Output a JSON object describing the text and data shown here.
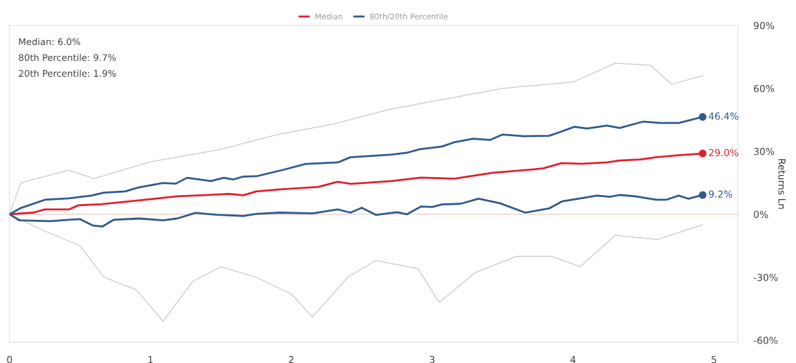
{
  "chart_data": {
    "type": "line",
    "annotations": [
      "Median: 6.0%",
      "80th Percentile: 9.7%",
      "20th Percentile: 1.9%"
    ],
    "ylabel": "Returns Ln",
    "xlim": [
      0,
      5.17
    ],
    "xticks": [
      0,
      1,
      2,
      3,
      4,
      5
    ],
    "ylim": [
      -61,
      90
    ],
    "yticks": [
      {
        "value": 90,
        "label": "90%"
      },
      {
        "value": 60,
        "label": "60%"
      },
      {
        "value": 30,
        "label": "30%"
      },
      {
        "value": 0,
        "label": "0%"
      },
      {
        "value": -30,
        "label": "-30%"
      },
      {
        "value": -60,
        "label": "-60%"
      }
    ],
    "ref_lines": [
      {
        "axis": "y",
        "value": 0,
        "color": "#f4d6d6"
      }
    ],
    "grid": false,
    "legend": "top",
    "line_style": "solid",
    "series": [
      {
        "color": "#c8c8c8",
        "x": [
          0,
          0.08,
          0.42,
          0.6,
          1.0,
          1.5,
          1.9,
          2.3,
          2.7,
          3.1,
          3.5,
          4.0,
          4.3,
          4.55,
          4.7,
          4.92
        ],
        "values": [
          0,
          15,
          21,
          17,
          25,
          31,
          38,
          43,
          50,
          55,
          60,
          63,
          72,
          71,
          62,
          66
        ]
      },
      {
        "color": "#c8c8c8",
        "x": [
          0,
          0.25,
          0.5,
          0.67,
          0.9,
          1.09,
          1.3,
          1.5,
          1.75,
          2.0,
          2.15,
          2.4,
          2.6,
          2.9,
          3.05,
          3.3,
          3.6,
          3.85,
          4.05,
          4.3,
          4.6,
          4.92
        ],
        "values": [
          0,
          -8,
          -15,
          -30,
          -36,
          -51,
          -32,
          -25,
          -30,
          -38,
          -49,
          -30,
          -22,
          -26,
          -42,
          -28,
          -20,
          -20,
          -25,
          -10,
          -12,
          -5
        ]
      },
      {
        "name": "Median",
        "color": "#e0202f",
        "x": [
          0,
          0.17,
          0.25,
          0.42,
          0.49,
          0.65,
          0.83,
          1.01,
          1.19,
          1.37,
          1.56,
          1.66,
          1.75,
          1.92,
          2.19,
          2.33,
          2.42,
          2.71,
          2.92,
          3.16,
          3.43,
          3.7,
          3.79,
          3.92,
          4.06,
          4.24,
          4.33,
          4.48,
          4.59,
          4.73,
          4.92
        ],
        "values": [
          0,
          0.8,
          2.3,
          2.3,
          4.3,
          4.8,
          6.0,
          7.3,
          8.6,
          9.1,
          9.7,
          9.1,
          10.9,
          11.9,
          13.0,
          15.5,
          14.5,
          15.8,
          17.5,
          17.0,
          19.8,
          21.3,
          21.9,
          24.4,
          24.1,
          24.7,
          25.6,
          26.1,
          27.2,
          28.0,
          29.0
        ],
        "value_labels": [
          null,
          null,
          null,
          null,
          null,
          null,
          null,
          null,
          null,
          null,
          null,
          null,
          null,
          null,
          null,
          null,
          null,
          null,
          null,
          null,
          null,
          null,
          null,
          null,
          null,
          null,
          null,
          null,
          null,
          null,
          "29.0%"
        ]
      },
      {
        "name": "80th/20th Percentile",
        "color": "#2f5b8c",
        "x": [
          0,
          0.08,
          0.25,
          0.42,
          0.58,
          0.67,
          0.82,
          0.91,
          1.09,
          1.18,
          1.26,
          1.43,
          1.52,
          1.59,
          1.66,
          1.75,
          1.95,
          2.1,
          2.33,
          2.42,
          2.71,
          2.82,
          2.91,
          3.07,
          3.16,
          3.29,
          3.41,
          3.5,
          3.66,
          3.83,
          3.9,
          4.01,
          4.1,
          4.24,
          4.33,
          4.5,
          4.62,
          4.75,
          4.92
        ],
        "values": [
          0,
          3.0,
          6.9,
          7.6,
          8.9,
          10.3,
          10.9,
          12.7,
          14.9,
          14.6,
          17.4,
          15.8,
          17.4,
          16.6,
          18.0,
          18.1,
          21.3,
          24.0,
          24.7,
          27.2,
          28.4,
          29.3,
          31.0,
          32.3,
          34.4,
          36.0,
          35.4,
          38.0,
          37.2,
          37.4,
          39.0,
          41.7,
          40.9,
          42.3,
          41.1,
          44.2,
          43.5,
          43.5,
          46.4
        ],
        "value_labels": [
          null,
          null,
          null,
          null,
          null,
          null,
          null,
          null,
          null,
          null,
          null,
          null,
          null,
          null,
          null,
          null,
          null,
          null,
          null,
          null,
          null,
          null,
          null,
          null,
          null,
          null,
          null,
          null,
          null,
          null,
          null,
          null,
          null,
          null,
          null,
          null,
          null,
          null,
          "46.4%"
        ]
      },
      {
        "color": "#2f5b8c",
        "x": [
          0,
          0.07,
          0.29,
          0.42,
          0.5,
          0.59,
          0.66,
          0.74,
          0.92,
          1.09,
          1.19,
          1.32,
          1.47,
          1.66,
          1.75,
          1.92,
          2.15,
          2.33,
          2.42,
          2.5,
          2.6,
          2.75,
          2.82,
          2.92,
          3.0,
          3.07,
          3.2,
          3.33,
          3.48,
          3.66,
          3.83,
          3.92,
          4.06,
          4.17,
          4.26,
          4.33,
          4.44,
          4.59,
          4.66,
          4.75,
          4.82,
          4.92
        ],
        "values": [
          0,
          -2.9,
          -3.3,
          -2.6,
          -2.3,
          -5.3,
          -5.8,
          -2.6,
          -2.0,
          -2.9,
          -2.0,
          0.7,
          -0.2,
          -0.8,
          0.2,
          0.8,
          0.4,
          2.3,
          0.8,
          3.1,
          -0.3,
          1.0,
          0,
          3.7,
          3.5,
          4.7,
          5.0,
          7.4,
          5.3,
          0.8,
          2.8,
          6.1,
          7.7,
          8.9,
          8.3,
          9.2,
          8.6,
          6.9,
          6.9,
          8.9,
          7.4,
          9.2
        ],
        "value_labels": [
          null,
          null,
          null,
          null,
          null,
          null,
          null,
          null,
          null,
          null,
          null,
          null,
          null,
          null,
          null,
          null,
          null,
          null,
          null,
          null,
          null,
          null,
          null,
          null,
          null,
          null,
          null,
          null,
          null,
          null,
          null,
          null,
          null,
          null,
          null,
          null,
          null,
          null,
          null,
          null,
          null,
          "9.2%"
        ]
      }
    ]
  }
}
